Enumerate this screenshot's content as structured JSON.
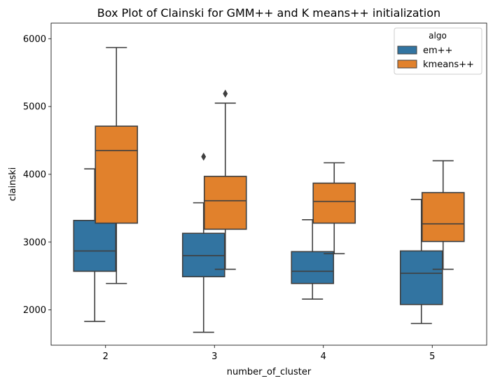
{
  "chart_data": {
    "type": "box",
    "title": "Box Plot of Clainski for GMM++ and K means++ initialization",
    "xlabel": "number_of_cluster",
    "ylabel": "clainski",
    "categories": [
      "2",
      "3",
      "4",
      "5"
    ],
    "ylim": [
      1480,
      6230
    ],
    "yticks": [
      2000,
      3000,
      4000,
      5000,
      6000
    ],
    "ytick_labels": [
      "2000",
      "3000",
      "4000",
      "5000",
      "6000"
    ],
    "grid": false,
    "legend": {
      "title": "algo",
      "placement": "top-right",
      "entries": [
        "em++",
        "kmeans++"
      ]
    },
    "series": [
      {
        "name": "em++",
        "color": "#3274a1",
        "boxes": [
          {
            "category": "2",
            "whisker_low": 1830,
            "q1": 2570,
            "median": 2870,
            "q3": 3320,
            "whisker_high": 4080,
            "outliers": []
          },
          {
            "category": "3",
            "whisker_low": 1670,
            "q1": 2490,
            "median": 2800,
            "q3": 3130,
            "whisker_high": 3580,
            "outliers": [
              4260
            ]
          },
          {
            "category": "4",
            "whisker_low": 2160,
            "q1": 2390,
            "median": 2570,
            "q3": 2860,
            "whisker_high": 3330,
            "outliers": []
          },
          {
            "category": "5",
            "whisker_low": 1800,
            "q1": 2080,
            "median": 2540,
            "q3": 2870,
            "whisker_high": 3630,
            "outliers": []
          }
        ]
      },
      {
        "name": "kmeans++",
        "color": "#e1812c",
        "boxes": [
          {
            "category": "2",
            "whisker_low": 2390,
            "q1": 3280,
            "median": 4350,
            "q3": 4710,
            "whisker_high": 5870,
            "outliers": []
          },
          {
            "category": "3",
            "whisker_low": 2600,
            "q1": 3190,
            "median": 3610,
            "q3": 3970,
            "whisker_high": 5050,
            "outliers": [
              5190
            ]
          },
          {
            "category": "4",
            "whisker_low": 2830,
            "q1": 3280,
            "median": 3600,
            "q3": 3870,
            "whisker_high": 4170,
            "outliers": []
          },
          {
            "category": "5",
            "whisker_low": 2600,
            "q1": 3010,
            "median": 3270,
            "q3": 3730,
            "whisker_high": 4200,
            "outliers": []
          }
        ]
      }
    ]
  }
}
